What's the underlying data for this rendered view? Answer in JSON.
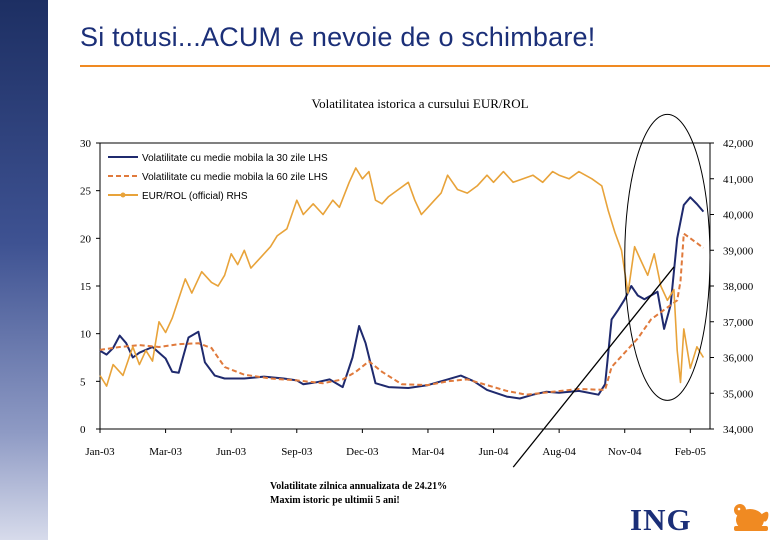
{
  "slide": {
    "title": "Si totusi...ACUM e nevoie de o schimbare!",
    "note_line1": "Volatilitate zilnica annualizata de 24.21%",
    "note_line2": "Maxim istoric pe ultimii 5 ani!",
    "logo_text": "ING"
  },
  "colors": {
    "sidebar": "#2b3d7a",
    "title": "#1b2f78",
    "accent_rule": "#f08a22",
    "vol30": "#1f2a6e",
    "vol60": "#e07a3c",
    "eur_rol": "#e8a33a"
  },
  "chart_data": {
    "type": "line",
    "title": "Volatilitatea istorica a cursului EUR/ROL",
    "x_tick_labels": [
      "Jan-03",
      "Mar-03",
      "Jun-03",
      "Sep-03",
      "Dec-03",
      "Mar-04",
      "Jun-04",
      "Aug-04",
      "Nov-04",
      "Feb-05"
    ],
    "y_left": {
      "min": 0,
      "max": 30,
      "ticks": [
        0,
        5,
        10,
        15,
        20,
        25,
        30
      ],
      "tick_labels": [
        "0",
        "5",
        "10",
        "15",
        "20",
        "25",
        "30"
      ]
    },
    "y_right": {
      "min": 34000,
      "max": 42000,
      "ticks": [
        34000,
        35000,
        36000,
        37000,
        38000,
        39000,
        40000,
        41000,
        42000
      ],
      "tick_labels": [
        "34,000",
        "35,000",
        "36,000",
        "37,000",
        "38,000",
        "39,000",
        "40,000",
        "41,000",
        "42,000"
      ]
    },
    "legend_position": "top-left",
    "grid": false,
    "series": [
      {
        "name": "Volatilitate cu medie mobila la 30 zile LHS",
        "axis": "left",
        "style": "solid",
        "points": [
          [
            0,
            8.2
          ],
          [
            0.1,
            7.8
          ],
          [
            0.2,
            8.5
          ],
          [
            0.3,
            9.8
          ],
          [
            0.4,
            9.0
          ],
          [
            0.5,
            7.5
          ],
          [
            0.6,
            8.0
          ],
          [
            0.8,
            8.6
          ],
          [
            1.0,
            7.4
          ],
          [
            1.1,
            6.0
          ],
          [
            1.2,
            5.9
          ],
          [
            1.35,
            9.6
          ],
          [
            1.5,
            10.2
          ],
          [
            1.6,
            7.0
          ],
          [
            1.75,
            5.6
          ],
          [
            1.9,
            5.3
          ],
          [
            2.2,
            5.3
          ],
          [
            2.5,
            5.5
          ],
          [
            2.8,
            5.3
          ],
          [
            3.0,
            5.1
          ],
          [
            3.1,
            4.7
          ],
          [
            3.3,
            4.9
          ],
          [
            3.5,
            5.2
          ],
          [
            3.7,
            4.4
          ],
          [
            3.85,
            7.5
          ],
          [
            3.95,
            10.8
          ],
          [
            4.05,
            9.0
          ],
          [
            4.2,
            4.8
          ],
          [
            4.4,
            4.4
          ],
          [
            4.7,
            4.3
          ],
          [
            5.0,
            4.6
          ],
          [
            5.3,
            5.2
          ],
          [
            5.5,
            5.6
          ],
          [
            5.7,
            5.0
          ],
          [
            5.9,
            4.1
          ],
          [
            6.2,
            3.4
          ],
          [
            6.4,
            3.2
          ],
          [
            6.6,
            3.6
          ],
          [
            6.8,
            3.9
          ],
          [
            7.0,
            3.8
          ],
          [
            7.3,
            4.0
          ],
          [
            7.6,
            3.6
          ],
          [
            7.7,
            4.7
          ],
          [
            7.75,
            8.0
          ],
          [
            7.8,
            11.5
          ],
          [
            7.9,
            12.5
          ],
          [
            8.0,
            13.6
          ],
          [
            8.1,
            15.0
          ],
          [
            8.2,
            14.0
          ],
          [
            8.3,
            13.6
          ],
          [
            8.4,
            14.0
          ],
          [
            8.5,
            14.4
          ],
          [
            8.6,
            10.5
          ],
          [
            8.7,
            13.0
          ],
          [
            8.8,
            20.0
          ],
          [
            8.9,
            23.5
          ],
          [
            9.0,
            24.3
          ],
          [
            9.1,
            23.6
          ],
          [
            9.2,
            22.8
          ]
        ]
      },
      {
        "name": "Volatilitate cu medie mobila la 60 zile LHS",
        "axis": "left",
        "style": "dashed",
        "points": [
          [
            0,
            8.3
          ],
          [
            0.3,
            8.6
          ],
          [
            0.6,
            8.8
          ],
          [
            0.9,
            8.6
          ],
          [
            1.2,
            8.9
          ],
          [
            1.5,
            9.0
          ],
          [
            1.7,
            8.5
          ],
          [
            1.9,
            6.5
          ],
          [
            2.2,
            5.7
          ],
          [
            2.6,
            5.3
          ],
          [
            3.0,
            5.1
          ],
          [
            3.4,
            4.8
          ],
          [
            3.7,
            5.2
          ],
          [
            3.9,
            6.0
          ],
          [
            4.1,
            7.1
          ],
          [
            4.3,
            6.0
          ],
          [
            4.6,
            4.7
          ],
          [
            5.0,
            4.6
          ],
          [
            5.3,
            5.0
          ],
          [
            5.6,
            5.2
          ],
          [
            5.9,
            4.6
          ],
          [
            6.2,
            4.0
          ],
          [
            6.5,
            3.6
          ],
          [
            6.9,
            3.9
          ],
          [
            7.3,
            4.2
          ],
          [
            7.7,
            4.1
          ],
          [
            7.8,
            6.5
          ],
          [
            8.0,
            8.0
          ],
          [
            8.2,
            9.5
          ],
          [
            8.4,
            11.5
          ],
          [
            8.6,
            12.5
          ],
          [
            8.8,
            13.5
          ],
          [
            8.85,
            15.5
          ],
          [
            8.9,
            20.5
          ],
          [
            9.0,
            20.0
          ],
          [
            9.1,
            19.5
          ],
          [
            9.2,
            19.0
          ]
        ]
      },
      {
        "name": "EUR/ROL (official) RHS",
        "axis": "right",
        "style": "marker",
        "points": [
          [
            0,
            35.5
          ],
          [
            0.1,
            35.2
          ],
          [
            0.2,
            35.8
          ],
          [
            0.35,
            35.5
          ],
          [
            0.5,
            36.3
          ],
          [
            0.6,
            35.8
          ],
          [
            0.7,
            36.2
          ],
          [
            0.8,
            35.9
          ],
          [
            0.9,
            37.0
          ],
          [
            1.0,
            36.7
          ],
          [
            1.1,
            37.1
          ],
          [
            1.3,
            38.2
          ],
          [
            1.4,
            37.8
          ],
          [
            1.55,
            38.4
          ],
          [
            1.7,
            38.1
          ],
          [
            1.8,
            38.0
          ],
          [
            1.9,
            38.3
          ],
          [
            2.0,
            38.9
          ],
          [
            2.1,
            38.6
          ],
          [
            2.2,
            39.0
          ],
          [
            2.3,
            38.5
          ],
          [
            2.45,
            38.8
          ],
          [
            2.6,
            39.1
          ],
          [
            2.7,
            39.4
          ],
          [
            2.85,
            39.6
          ],
          [
            3.0,
            40.4
          ],
          [
            3.1,
            40.0
          ],
          [
            3.25,
            40.3
          ],
          [
            3.4,
            40.0
          ],
          [
            3.55,
            40.4
          ],
          [
            3.65,
            40.2
          ],
          [
            3.8,
            40.9
          ],
          [
            3.9,
            41.3
          ],
          [
            4.0,
            41.0
          ],
          [
            4.1,
            41.2
          ],
          [
            4.2,
            40.4
          ],
          [
            4.3,
            40.3
          ],
          [
            4.4,
            40.5
          ],
          [
            4.55,
            40.7
          ],
          [
            4.7,
            40.9
          ],
          [
            4.8,
            40.4
          ],
          [
            4.9,
            40.0
          ],
          [
            5.0,
            40.2
          ],
          [
            5.1,
            40.4
          ],
          [
            5.2,
            40.6
          ],
          [
            5.3,
            41.1
          ],
          [
            5.45,
            40.7
          ],
          [
            5.6,
            40.6
          ],
          [
            5.75,
            40.8
          ],
          [
            5.9,
            41.1
          ],
          [
            6.0,
            40.9
          ],
          [
            6.15,
            41.2
          ],
          [
            6.3,
            40.9
          ],
          [
            6.45,
            41.0
          ],
          [
            6.6,
            41.1
          ],
          [
            6.75,
            40.9
          ],
          [
            6.9,
            41.2
          ],
          [
            7.0,
            41.1
          ],
          [
            7.15,
            41.0
          ],
          [
            7.3,
            41.2
          ],
          [
            7.5,
            41.0
          ],
          [
            7.65,
            40.8
          ],
          [
            7.75,
            40.1
          ],
          [
            7.85,
            39.5
          ],
          [
            7.95,
            39.0
          ],
          [
            8.05,
            37.8
          ],
          [
            8.15,
            39.1
          ],
          [
            8.25,
            38.7
          ],
          [
            8.35,
            38.3
          ],
          [
            8.45,
            38.9
          ],
          [
            8.55,
            38.0
          ],
          [
            8.65,
            37.6
          ],
          [
            8.75,
            37.9
          ],
          [
            8.8,
            36.2
          ],
          [
            8.85,
            35.3
          ],
          [
            8.9,
            36.8
          ],
          [
            9.0,
            35.7
          ],
          [
            9.1,
            36.3
          ],
          [
            9.2,
            36.0
          ]
        ]
      }
    ],
    "annotations": [
      {
        "type": "ellipse",
        "around_x": [
          8.0,
          9.3
        ],
        "around_left_y": [
          3,
          33
        ]
      },
      {
        "type": "arrow",
        "from_x": 6.3,
        "from_left_y": -4,
        "to_x": 8.75,
        "to_left_y": 17
      }
    ]
  }
}
